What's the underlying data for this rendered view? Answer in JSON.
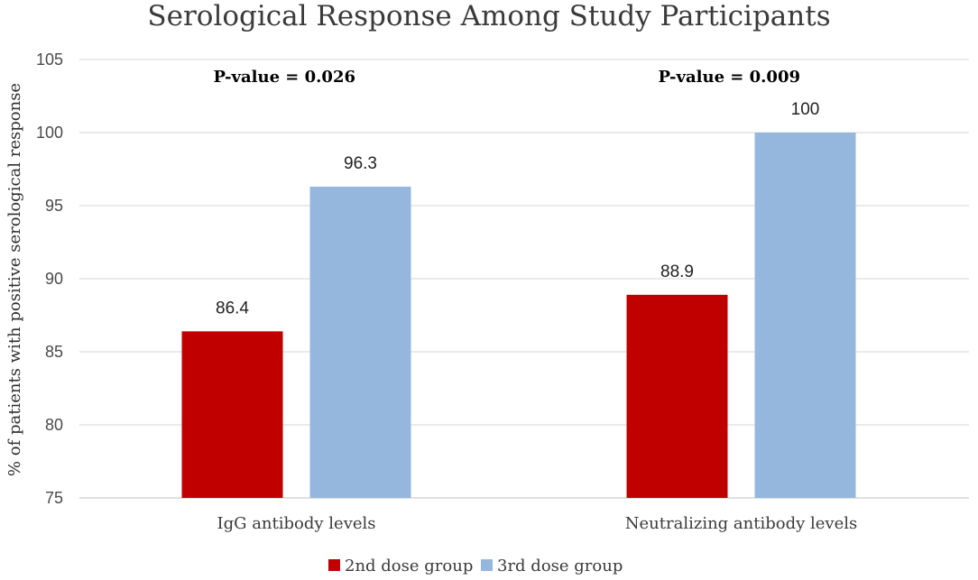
{
  "chart_data": {
    "type": "bar",
    "title": "Serological Response Among Study Participants",
    "xlabel": "",
    "ylabel": "% of patients with positive serological response",
    "ylim": [
      75,
      105
    ],
    "yticks": [
      75,
      80,
      85,
      90,
      95,
      100,
      105
    ],
    "grid": true,
    "legend_position": "bottom",
    "categories": [
      "IgG antibody levels",
      "Neutralizing antibody levels"
    ],
    "series": [
      {
        "name": "2nd dose group",
        "color": "#c00000",
        "values": [
          86.4,
          88.9
        ]
      },
      {
        "name": "3rd dose group",
        "color": "#95b7de",
        "values": [
          96.3,
          100
        ]
      }
    ],
    "data_labels": [
      [
        "86.4",
        "96.3"
      ],
      [
        "88.9",
        "100"
      ]
    ],
    "annotations": [
      "P-value = 0.026",
      "P-value = 0.009"
    ]
  }
}
